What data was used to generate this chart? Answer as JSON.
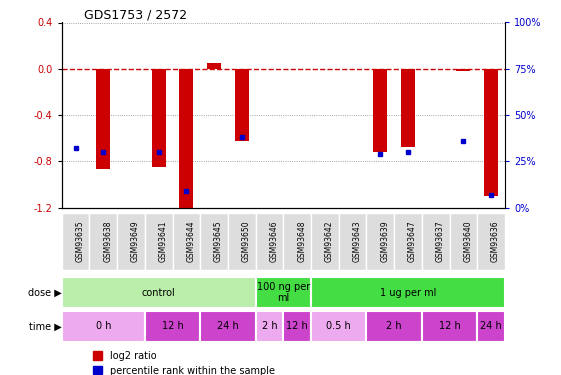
{
  "title": "GDS1753 / 2572",
  "samples": [
    "GSM93635",
    "GSM93638",
    "GSM93649",
    "GSM93641",
    "GSM93644",
    "GSM93645",
    "GSM93650",
    "GSM93646",
    "GSM93648",
    "GSM93642",
    "GSM93643",
    "GSM93639",
    "GSM93647",
    "GSM93637",
    "GSM93640",
    "GSM93636"
  ],
  "log2_ratio": [
    0.0,
    -0.87,
    0.0,
    -0.85,
    -1.22,
    0.05,
    -0.62,
    0.0,
    0.0,
    0.0,
    0.0,
    -0.72,
    -0.68,
    0.0,
    -0.02,
    -1.1
  ],
  "percentile": [
    32,
    30,
    null,
    30,
    9,
    null,
    38,
    null,
    null,
    null,
    null,
    29,
    30,
    null,
    36,
    7
  ],
  "ylim_left": [
    -1.2,
    0.4
  ],
  "ylim_right": [
    0,
    100
  ],
  "yticks_left": [
    -1.2,
    -0.8,
    -0.4,
    0.0,
    0.4
  ],
  "yticks_right": [
    0,
    25,
    50,
    75,
    100
  ],
  "dose_groups": [
    {
      "label": "control",
      "start": 0,
      "end": 7,
      "color": "#bbeeaa"
    },
    {
      "label": "100 ng per\nml",
      "start": 7,
      "end": 9,
      "color": "#44dd44"
    },
    {
      "label": "1 ug per ml",
      "start": 9,
      "end": 16,
      "color": "#44dd44"
    }
  ],
  "time_groups": [
    {
      "label": "0 h",
      "start": 0,
      "end": 3,
      "color": "#eeaaee"
    },
    {
      "label": "12 h",
      "start": 3,
      "end": 5,
      "color": "#cc44cc"
    },
    {
      "label": "24 h",
      "start": 5,
      "end": 7,
      "color": "#cc44cc"
    },
    {
      "label": "2 h",
      "start": 7,
      "end": 8,
      "color": "#eeaaee"
    },
    {
      "label": "12 h",
      "start": 8,
      "end": 9,
      "color": "#cc44cc"
    },
    {
      "label": "0.5 h",
      "start": 9,
      "end": 11,
      "color": "#eeaaee"
    },
    {
      "label": "2 h",
      "start": 11,
      "end": 13,
      "color": "#cc44cc"
    },
    {
      "label": "12 h",
      "start": 13,
      "end": 15,
      "color": "#cc44cc"
    },
    {
      "label": "24 h",
      "start": 15,
      "end": 16,
      "color": "#cc44cc"
    }
  ],
  "bar_color": "#cc0000",
  "pct_color": "#0000cc",
  "dashed_line_color": "#cc0000",
  "dot_line_color": "#888888",
  "bg_color": "#ffffff",
  "tick_label_color_left": "#cc0000",
  "tick_label_color_right": "#0000cc",
  "sample_box_color": "#dddddd",
  "bar_width": 0.5
}
